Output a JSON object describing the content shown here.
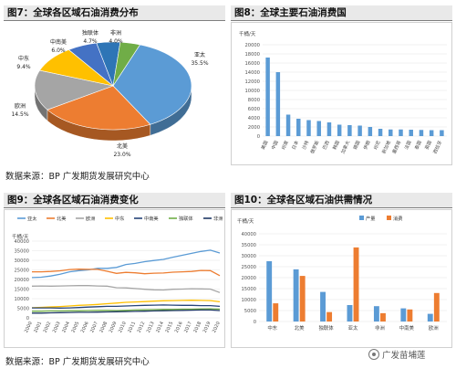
{
  "figures": {
    "fig7_title": "图7：全球各区域石油消费分布",
    "fig8_title": "图8：全球主要石油消费国",
    "fig9_title": "图9：全球各区域石油消费变化",
    "fig10_title": "图10：全球各区域石油供需情况"
  },
  "sources": {
    "top": "数据来源：BP 广发期货发展研究中心",
    "bottom": "数据来源：BP 广发期货发展研究中心"
  },
  "watermark": "广发苗埔莲",
  "colors": {
    "blue": "#5b9bd5",
    "orange": "#ed7d31",
    "gray": "#a5a5a5",
    "yellow": "#ffc000",
    "darkblue": "#264478",
    "green": "#70ad47",
    "navy": "#1f3864",
    "brown": "#9e480e"
  },
  "chart_data": [
    {
      "id": "fig7",
      "type": "pie",
      "slices": [
        {
          "name": "亚太",
          "value": 35.5,
          "label": "亚太\n35.5%",
          "color": "#5b9bd5"
        },
        {
          "name": "北美",
          "value": 23.0,
          "label": "北美\n23.0%",
          "color": "#ed7d31"
        },
        {
          "name": "欧洲",
          "value": 14.5,
          "label": "欧洲\n14.5%",
          "color": "#a5a5a5"
        },
        {
          "name": "中东",
          "value": 9.4,
          "label": "中东\n9.4%",
          "color": "#ffc000"
        },
        {
          "name": "中南美",
          "value": 6.0,
          "label": "中南美\n6.0%",
          "color": "#4472c4"
        },
        {
          "name": "独联体",
          "value": 4.7,
          "label": "独联体\n4.7%",
          "color": "#2e75b6"
        },
        {
          "name": "非洲",
          "value": 4.0,
          "label": "非洲\n4.0%",
          "color": "#70ad47"
        }
      ]
    },
    {
      "id": "fig8",
      "type": "bar",
      "ylabel": "千桶/天",
      "ylim": [
        0,
        20000
      ],
      "yticks": [
        0,
        2000,
        4000,
        6000,
        8000,
        10000,
        12000,
        14000,
        16000,
        18000,
        20000
      ],
      "categories": [
        "美国",
        "中国",
        "印度",
        "日本",
        "沙特",
        "俄罗斯",
        "巴西",
        "韩国",
        "加拿大",
        "德国",
        "伊朗",
        "印尼",
        "新加坡",
        "墨西哥",
        "法国",
        "泰国",
        "英国",
        "西班牙"
      ],
      "values": [
        17200,
        14000,
        4700,
        3800,
        3500,
        3300,
        3000,
        2500,
        2400,
        2300,
        2000,
        1600,
        1450,
        1450,
        1400,
        1350,
        1300,
        1300
      ],
      "color": "#5b9bd5"
    },
    {
      "id": "fig9",
      "type": "line",
      "ylabel": "千桶/天",
      "ylim": [
        0,
        40000
      ],
      "yticks": [
        0,
        5000,
        10000,
        15000,
        20000,
        25000,
        30000,
        35000,
        40000
      ],
      "x": [
        "2000",
        "2001",
        "2002",
        "2003",
        "2004",
        "2005",
        "2006",
        "2007",
        "2008",
        "2009",
        "2010",
        "2011",
        "2012",
        "2013",
        "2014",
        "2015",
        "2016",
        "2017",
        "2018",
        "2019",
        "2020"
      ],
      "series": [
        {
          "name": "亚太",
          "color": "#5b9bd5",
          "values": [
            21000,
            21200,
            21800,
            22700,
            24000,
            24600,
            25000,
            25800,
            25800,
            26300,
            27800,
            28400,
            29300,
            29900,
            30500,
            31600,
            32600,
            33600,
            34600,
            35300,
            33800
          ]
        },
        {
          "name": "北美",
          "color": "#ed7d31",
          "values": [
            24000,
            24000,
            24200,
            24500,
            25200,
            25400,
            25300,
            25300,
            24300,
            23200,
            23700,
            23500,
            23000,
            23300,
            23400,
            23800,
            24000,
            24200,
            24700,
            24600,
            22000
          ]
        },
        {
          "name": "欧洲",
          "color": "#a5a5a5",
          "values": [
            16500,
            16600,
            16500,
            16600,
            16700,
            16800,
            16800,
            16600,
            16500,
            15700,
            15600,
            15300,
            14900,
            14600,
            14500,
            14900,
            15000,
            15200,
            15100,
            15000,
            13200
          ]
        },
        {
          "name": "中东",
          "color": "#ffc000",
          "values": [
            5300,
            5500,
            5700,
            5900,
            6200,
            6500,
            6700,
            7000,
            7400,
            7700,
            8100,
            8300,
            8500,
            8700,
            8900,
            9000,
            9100,
            9200,
            9100,
            9000,
            8400
          ]
        },
        {
          "name": "中南美",
          "color": "#264478",
          "values": [
            5200,
            5200,
            5200,
            5100,
            5200,
            5400,
            5600,
            5800,
            6000,
            6000,
            6200,
            6400,
            6500,
            6600,
            6700,
            6600,
            6500,
            6500,
            6400,
            6400,
            6000
          ]
        },
        {
          "name": "独联体",
          "color": "#70ad47",
          "values": [
            3500,
            3500,
            3600,
            3600,
            3700,
            3700,
            3800,
            3900,
            3900,
            3800,
            3900,
            4100,
            4200,
            4300,
            4400,
            4400,
            4500,
            4500,
            4600,
            4700,
            4500
          ]
        },
        {
          "name": "非洲",
          "color": "#1f3864",
          "values": [
            2500,
            2500,
            2600,
            2700,
            2800,
            2900,
            2900,
            3000,
            3100,
            3200,
            3300,
            3400,
            3500,
            3600,
            3700,
            3800,
            3900,
            4000,
            4100,
            4100,
            3800
          ]
        }
      ]
    },
    {
      "id": "fig10",
      "type": "bar",
      "ylabel": "千桶/天",
      "ylim": [
        0,
        40000
      ],
      "yticks": [
        0,
        5000,
        10000,
        15000,
        20000,
        25000,
        30000,
        35000,
        40000
      ],
      "categories": [
        "中东",
        "北美",
        "独联体",
        "亚太",
        "非洲",
        "中南美",
        "欧洲"
      ],
      "series": [
        {
          "name": "产量",
          "color": "#5b9bd5",
          "values": [
            27500,
            23800,
            13500,
            7500,
            7000,
            6000,
            3500
          ]
        },
        {
          "name": "消费",
          "color": "#ed7d31",
          "values": [
            8300,
            20800,
            4300,
            33800,
            3800,
            5500,
            13000
          ]
        }
      ]
    }
  ]
}
